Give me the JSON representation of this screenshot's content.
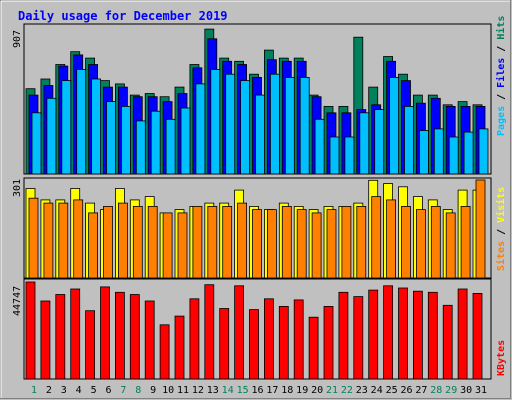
{
  "chart_data": [
    {
      "type": "bar",
      "title": "Daily usage for December 2019",
      "max_label": "907",
      "categories": [
        "1",
        "2",
        "3",
        "4",
        "5",
        "6",
        "7",
        "8",
        "9",
        "10",
        "11",
        "12",
        "13",
        "14",
        "15",
        "16",
        "17",
        "18",
        "19",
        "20",
        "21",
        "22",
        "23",
        "24",
        "25",
        "26",
        "27",
        "28",
        "29",
        "30",
        "31"
      ],
      "weekend_days": [
        "1",
        "7",
        "8",
        "14",
        "15",
        "21",
        "22",
        "28",
        "29"
      ],
      "legend": [
        "Pages",
        "Files",
        "Hits"
      ],
      "ylim": [
        0,
        907
      ],
      "series": [
        {
          "name": "Hits",
          "color": "#00805c",
          "values": [
            530,
            590,
            680,
            760,
            720,
            580,
            560,
            490,
            500,
            480,
            540,
            680,
            900,
            720,
            700,
            620,
            770,
            720,
            720,
            490,
            420,
            420,
            850,
            540,
            730,
            620,
            490,
            490,
            430,
            450,
            430
          ]
        },
        {
          "name": "Files",
          "color": "#0000ff",
          "values": [
            490,
            550,
            670,
            740,
            680,
            540,
            540,
            480,
            480,
            450,
            500,
            660,
            840,
            700,
            680,
            600,
            710,
            700,
            700,
            480,
            380,
            380,
            400,
            430,
            700,
            580,
            440,
            470,
            420,
            420,
            420
          ]
        },
        {
          "name": "Pages",
          "color": "#00bfff",
          "values": [
            380,
            470,
            580,
            650,
            590,
            450,
            420,
            330,
            390,
            340,
            410,
            560,
            650,
            620,
            580,
            490,
            620,
            600,
            600,
            340,
            230,
            230,
            380,
            400,
            600,
            420,
            270,
            280,
            230,
            260,
            280
          ]
        }
      ]
    },
    {
      "type": "bar",
      "max_label": "301",
      "legend": [
        "Sites",
        "Visits"
      ],
      "ylim": [
        0,
        301
      ],
      "series": [
        {
          "name": "Visits",
          "color": "#ffff00",
          "values": [
            275,
            240,
            240,
            275,
            230,
            210,
            275,
            240,
            250,
            200,
            210,
            220,
            230,
            230,
            270,
            220,
            210,
            230,
            220,
            210,
            220,
            220,
            230,
            300,
            290,
            280,
            250,
            240,
            210,
            270,
            270
          ]
        },
        {
          "name": "Sites",
          "color": "#ff8000",
          "values": [
            245,
            230,
            230,
            240,
            200,
            220,
            230,
            220,
            220,
            200,
            200,
            220,
            220,
            220,
            230,
            210,
            210,
            220,
            210,
            200,
            210,
            220,
            220,
            250,
            240,
            220,
            210,
            220,
            200,
            220,
            301
          ]
        }
      ]
    },
    {
      "type": "bar",
      "max_label": "44747",
      "legend": [
        "KBytes"
      ],
      "ylim": [
        0,
        44747
      ],
      "series": [
        {
          "name": "KBytes",
          "color": "#ff0000",
          "values": [
            44747,
            36000,
            39000,
            41500,
            31500,
            42500,
            40000,
            39000,
            36000,
            25000,
            29000,
            37000,
            43500,
            32500,
            43000,
            32000,
            37000,
            33500,
            36500,
            28500,
            33500,
            40000,
            38000,
            41000,
            43000,
            42000,
            40500,
            40000,
            34000,
            41500,
            39500
          ]
        }
      ]
    }
  ]
}
